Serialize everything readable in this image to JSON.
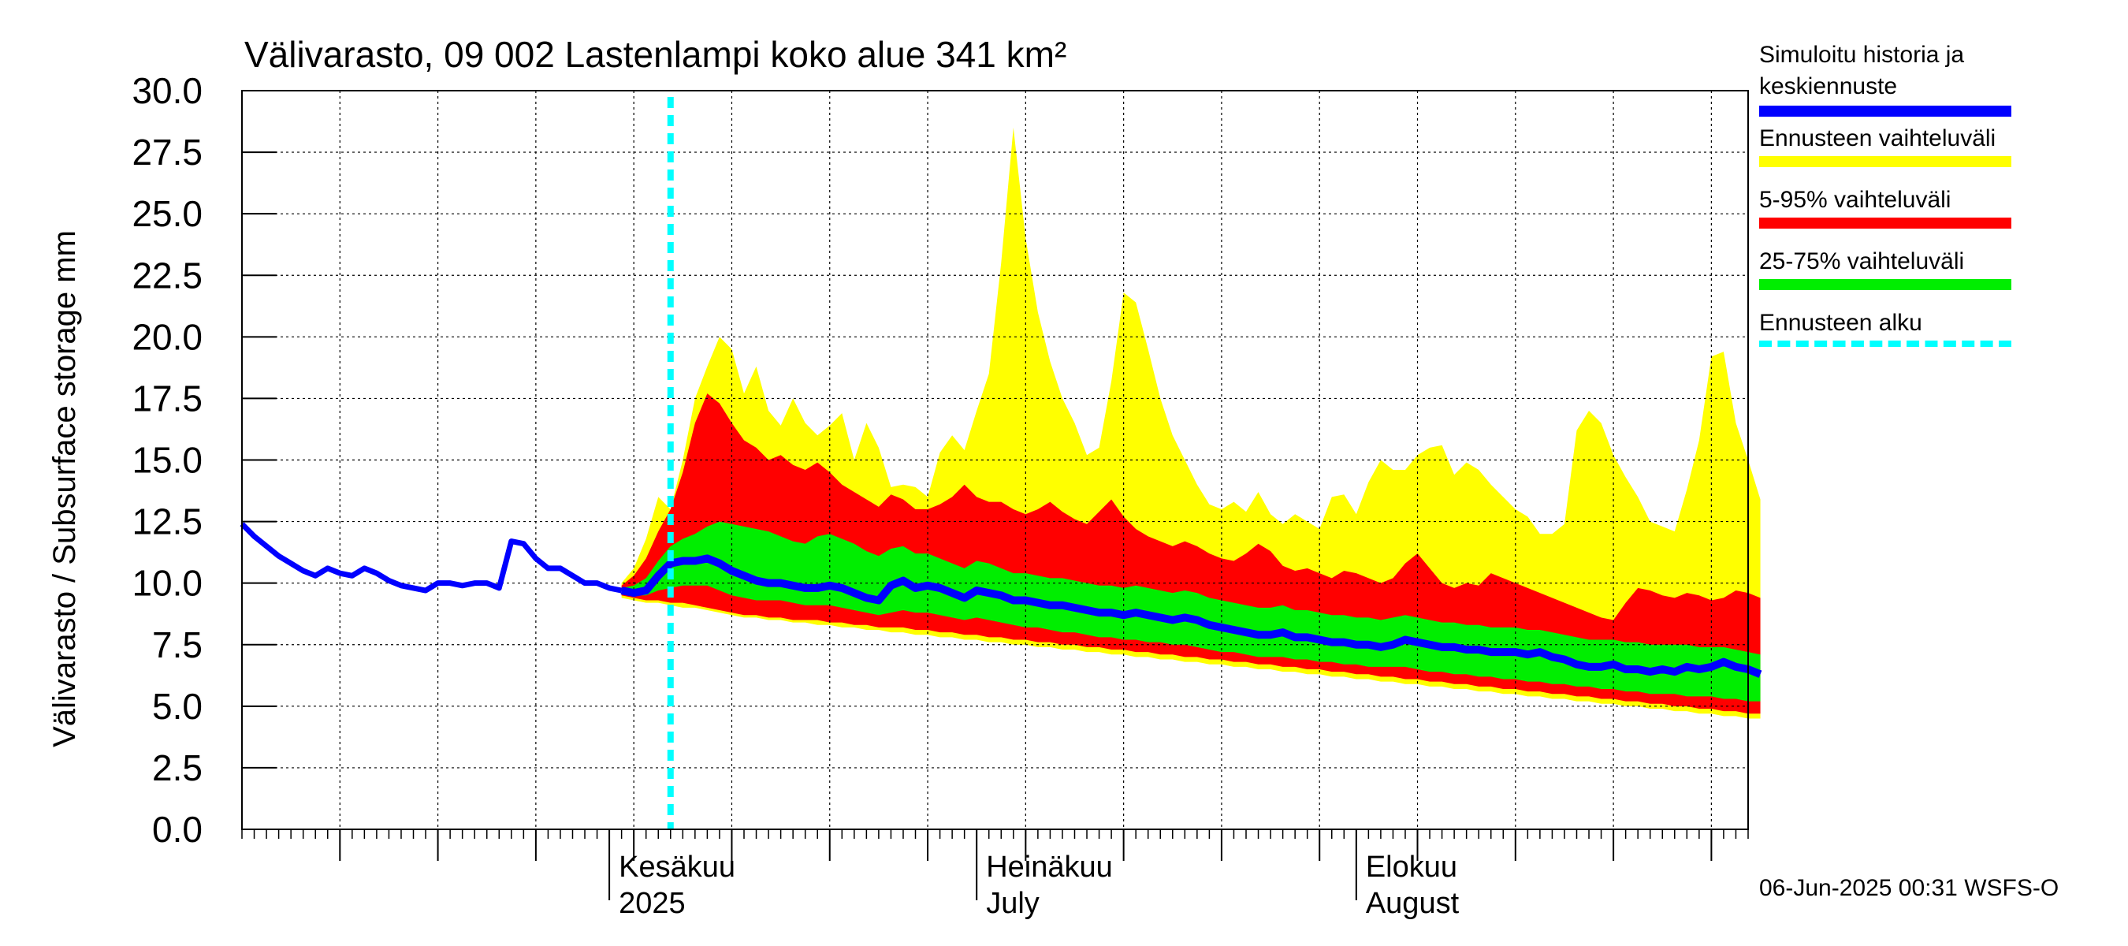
{
  "chart_data": {
    "type": "area",
    "title": "Välivarasto, 09 002 Lastenlampi koko alue 341 km²",
    "ylabel": "Välivarasto / Subsurface storage  mm",
    "ylim": [
      0,
      30
    ],
    "yticks": [
      "0.0",
      "2.5",
      "5.0",
      "7.5",
      "10.0",
      "12.5",
      "15.0",
      "17.5",
      "20.0",
      "22.5",
      "25.0",
      "27.5",
      "30.0"
    ],
    "x_start": "2025-05-02",
    "x_end": "2025-09-02",
    "forecast_start": "2025-06-06",
    "month_labels": [
      {
        "date": "2025-06-01",
        "line1": "Kesäkuu",
        "line2": "2025"
      },
      {
        "date": "2025-07-01",
        "line1": "Heinäkuu",
        "line2": "July"
      },
      {
        "date": "2025-08-01",
        "line1": "Elokuu",
        "line2": "August"
      }
    ],
    "grid": true,
    "legend_position": "right",
    "history": {
      "name": "Simuloitu historia ja keskiennuste",
      "points": [
        [
          "2025-05-02",
          12.4
        ],
        [
          "2025-05-03",
          11.9
        ],
        [
          "2025-05-04",
          11.5
        ],
        [
          "2025-05-05",
          11.1
        ],
        [
          "2025-05-06",
          10.8
        ],
        [
          "2025-05-07",
          10.5
        ],
        [
          "2025-05-08",
          10.3
        ],
        [
          "2025-05-09",
          10.6
        ],
        [
          "2025-05-10",
          10.4
        ],
        [
          "2025-05-11",
          10.3
        ],
        [
          "2025-05-12",
          10.6
        ],
        [
          "2025-05-13",
          10.4
        ],
        [
          "2025-05-14",
          10.1
        ],
        [
          "2025-05-15",
          9.9
        ],
        [
          "2025-05-16",
          9.8
        ],
        [
          "2025-05-17",
          9.7
        ],
        [
          "2025-05-18",
          10.0
        ],
        [
          "2025-05-19",
          10.0
        ],
        [
          "2025-05-20",
          9.9
        ],
        [
          "2025-05-21",
          10.0
        ],
        [
          "2025-05-22",
          10.0
        ],
        [
          "2025-05-23",
          9.8
        ],
        [
          "2025-05-24",
          11.7
        ],
        [
          "2025-05-25",
          11.6
        ],
        [
          "2025-05-26",
          11.0
        ],
        [
          "2025-05-27",
          10.6
        ],
        [
          "2025-05-28",
          10.6
        ],
        [
          "2025-05-29",
          10.3
        ],
        [
          "2025-05-30",
          10.0
        ],
        [
          "2025-05-31",
          10.0
        ],
        [
          "2025-06-01",
          9.8
        ],
        [
          "2025-06-02",
          9.7
        ]
      ]
    },
    "forecast": {
      "dates_start": "2025-06-02",
      "median": [
        9.7,
        9.6,
        9.7,
        10.3,
        10.8,
        10.9,
        10.9,
        11.0,
        10.8,
        10.5,
        10.3,
        10.1,
        10.0,
        10.0,
        9.9,
        9.8,
        9.8,
        9.9,
        9.8,
        9.6,
        9.4,
        9.3,
        9.9,
        10.1,
        9.8,
        9.9,
        9.8,
        9.6,
        9.4,
        9.7,
        9.6,
        9.5,
        9.3,
        9.3,
        9.2,
        9.1,
        9.1,
        9.0,
        8.9,
        8.8,
        8.8,
        8.7,
        8.8,
        8.7,
        8.6,
        8.5,
        8.6,
        8.5,
        8.3,
        8.2,
        8.1,
        8.0,
        7.9,
        7.9,
        8.0,
        7.8,
        7.8,
        7.7,
        7.6,
        7.6,
        7.5,
        7.5,
        7.4,
        7.5,
        7.7,
        7.6,
        7.5,
        7.4,
        7.4,
        7.3,
        7.3,
        7.2,
        7.2,
        7.2,
        7.1,
        7.2,
        7.0,
        6.9,
        6.7,
        6.6,
        6.6,
        6.7,
        6.5,
        6.5,
        6.4,
        6.5,
        6.4,
        6.6,
        6.5,
        6.6,
        6.8,
        6.6,
        6.5,
        6.3
      ],
      "p25": [
        9.6,
        9.5,
        9.5,
        9.7,
        9.8,
        9.9,
        9.9,
        9.9,
        9.7,
        9.5,
        9.4,
        9.3,
        9.3,
        9.3,
        9.2,
        9.1,
        9.1,
        9.1,
        9.0,
        8.9,
        8.8,
        8.7,
        8.8,
        8.9,
        8.8,
        8.8,
        8.7,
        8.6,
        8.5,
        8.6,
        8.5,
        8.4,
        8.3,
        8.2,
        8.2,
        8.1,
        8.0,
        8.0,
        7.9,
        7.8,
        7.8,
        7.7,
        7.7,
        7.6,
        7.6,
        7.5,
        7.5,
        7.4,
        7.3,
        7.2,
        7.2,
        7.1,
        7.0,
        7.0,
        7.0,
        6.9,
        6.9,
        6.8,
        6.8,
        6.7,
        6.7,
        6.6,
        6.6,
        6.6,
        6.6,
        6.5,
        6.4,
        6.4,
        6.3,
        6.3,
        6.2,
        6.2,
        6.1,
        6.1,
        6.0,
        6.0,
        5.9,
        5.9,
        5.8,
        5.8,
        5.7,
        5.7,
        5.6,
        5.6,
        5.5,
        5.5,
        5.5,
        5.4,
        5.4,
        5.4,
        5.3,
        5.3,
        5.2,
        5.2
      ],
      "p75": [
        9.8,
        9.9,
        10.2,
        10.9,
        11.5,
        11.8,
        12.0,
        12.3,
        12.5,
        12.4,
        12.3,
        12.2,
        12.1,
        11.9,
        11.7,
        11.6,
        11.9,
        12.0,
        11.8,
        11.6,
        11.3,
        11.1,
        11.4,
        11.5,
        11.2,
        11.2,
        11.0,
        10.8,
        10.6,
        10.9,
        10.8,
        10.6,
        10.4,
        10.4,
        10.3,
        10.2,
        10.2,
        10.1,
        10.0,
        9.9,
        9.9,
        9.8,
        9.9,
        9.8,
        9.7,
        9.6,
        9.7,
        9.6,
        9.4,
        9.3,
        9.2,
        9.1,
        9.0,
        9.0,
        9.1,
        8.9,
        8.9,
        8.8,
        8.7,
        8.7,
        8.6,
        8.6,
        8.5,
        8.6,
        8.7,
        8.6,
        8.5,
        8.4,
        8.4,
        8.3,
        8.3,
        8.2,
        8.2,
        8.2,
        8.1,
        8.1,
        8.0,
        7.9,
        7.8,
        7.7,
        7.7,
        7.7,
        7.6,
        7.6,
        7.5,
        7.5,
        7.5,
        7.5,
        7.4,
        7.4,
        7.4,
        7.3,
        7.2,
        7.1
      ],
      "p5": [
        9.5,
        9.4,
        9.3,
        9.3,
        9.2,
        9.2,
        9.1,
        9.0,
        8.9,
        8.8,
        8.7,
        8.7,
        8.6,
        8.6,
        8.5,
        8.5,
        8.5,
        8.4,
        8.4,
        8.3,
        8.3,
        8.2,
        8.2,
        8.2,
        8.1,
        8.1,
        8.0,
        8.0,
        7.9,
        7.9,
        7.8,
        7.8,
        7.7,
        7.7,
        7.6,
        7.6,
        7.5,
        7.5,
        7.4,
        7.4,
        7.3,
        7.3,
        7.2,
        7.2,
        7.1,
        7.1,
        7.0,
        7.0,
        6.9,
        6.9,
        6.8,
        6.8,
        6.7,
        6.7,
        6.6,
        6.6,
        6.5,
        6.5,
        6.4,
        6.4,
        6.3,
        6.3,
        6.2,
        6.2,
        6.1,
        6.1,
        6.0,
        6.0,
        5.9,
        5.9,
        5.8,
        5.8,
        5.7,
        5.7,
        5.6,
        5.6,
        5.5,
        5.5,
        5.4,
        5.4,
        5.3,
        5.3,
        5.2,
        5.2,
        5.1,
        5.1,
        5.0,
        5.0,
        4.9,
        4.9,
        4.8,
        4.8,
        4.7,
        4.7
      ],
      "p95": [
        9.9,
        10.3,
        11.0,
        12.1,
        13.0,
        14.5,
        16.5,
        17.7,
        17.3,
        16.5,
        15.8,
        15.5,
        15.0,
        15.2,
        14.8,
        14.6,
        14.9,
        14.5,
        14.0,
        13.7,
        13.4,
        13.1,
        13.6,
        13.4,
        13.0,
        13.0,
        13.2,
        13.5,
        14.0,
        13.5,
        13.3,
        13.3,
        13.0,
        12.8,
        13.0,
        13.3,
        12.9,
        12.6,
        12.4,
        12.9,
        13.4,
        12.7,
        12.2,
        11.9,
        11.7,
        11.5,
        11.7,
        11.5,
        11.2,
        11.0,
        10.9,
        11.2,
        11.6,
        11.3,
        10.7,
        10.5,
        10.6,
        10.4,
        10.2,
        10.5,
        10.4,
        10.2,
        10.0,
        10.2,
        10.8,
        11.2,
        10.6,
        10.0,
        9.8,
        10.0,
        9.9,
        10.4,
        10.2,
        10.0,
        9.8,
        9.6,
        9.4,
        9.2,
        9.0,
        8.8,
        8.6,
        8.5,
        9.2,
        9.8,
        9.7,
        9.5,
        9.4,
        9.6,
        9.5,
        9.3,
        9.4,
        9.7,
        9.6,
        9.4
      ],
      "min": [
        9.4,
        9.3,
        9.2,
        9.2,
        9.1,
        9.0,
        9.0,
        8.9,
        8.8,
        8.7,
        8.6,
        8.6,
        8.5,
        8.5,
        8.4,
        8.4,
        8.3,
        8.3,
        8.2,
        8.2,
        8.1,
        8.1,
        8.0,
        8.0,
        7.9,
        7.9,
        7.8,
        7.8,
        7.7,
        7.7,
        7.6,
        7.6,
        7.5,
        7.5,
        7.4,
        7.4,
        7.3,
        7.3,
        7.2,
        7.2,
        7.1,
        7.1,
        7.0,
        7.0,
        6.9,
        6.9,
        6.8,
        6.8,
        6.7,
        6.7,
        6.6,
        6.6,
        6.5,
        6.5,
        6.4,
        6.4,
        6.3,
        6.3,
        6.2,
        6.2,
        6.1,
        6.1,
        6.0,
        6.0,
        5.9,
        5.9,
        5.8,
        5.8,
        5.7,
        5.7,
        5.6,
        5.6,
        5.5,
        5.5,
        5.4,
        5.4,
        5.3,
        5.3,
        5.2,
        5.2,
        5.1,
        5.1,
        5.0,
        5.0,
        4.9,
        4.9,
        4.8,
        4.8,
        4.7,
        4.7,
        4.6,
        4.6,
        4.5,
        4.5
      ],
      "max": [
        10.0,
        10.6,
        11.8,
        13.5,
        13.0,
        15.0,
        17.5,
        18.8,
        20.0,
        19.5,
        17.7,
        18.8,
        17.0,
        16.4,
        17.5,
        16.5,
        16.0,
        16.4,
        16.9,
        15.0,
        16.5,
        15.5,
        13.9,
        14.0,
        13.9,
        13.5,
        15.3,
        16.0,
        15.4,
        17.0,
        18.5,
        23.0,
        28.5,
        24.0,
        21.0,
        19.0,
        17.5,
        16.5,
        15.2,
        15.5,
        18.2,
        21.8,
        21.4,
        19.5,
        17.5,
        16.0,
        15.0,
        14.0,
        13.2,
        13.0,
        13.3,
        12.9,
        13.7,
        12.8,
        12.4,
        12.8,
        12.5,
        12.2,
        13.5,
        13.6,
        12.8,
        14.1,
        15.0,
        14.6,
        14.6,
        15.2,
        15.5,
        15.6,
        14.4,
        14.9,
        14.6,
        14.0,
        13.5,
        13.0,
        12.7,
        12.0,
        12.0,
        12.4,
        16.2,
        17.0,
        16.5,
        15.2,
        14.3,
        13.5,
        12.5,
        12.3,
        12.1,
        13.8,
        15.8,
        19.2,
        19.4,
        16.5,
        15.0,
        13.4
      ]
    },
    "series_legend": [
      {
        "name": "Simuloitu historia ja\nkeskiennuste",
        "color": "#0000ff"
      },
      {
        "name": "Ennusteen vaihteluväli",
        "color": "#ffff00"
      },
      {
        "name": "5-95% vaihteluväli",
        "color": "#ff0000"
      },
      {
        "name": "25-75% vaihteluväli",
        "color": "#00ee00"
      },
      {
        "name": "Ennusteen alku",
        "color": "#00ffff"
      }
    ],
    "footer": "06-Jun-2025 00:31 WSFS-O"
  }
}
